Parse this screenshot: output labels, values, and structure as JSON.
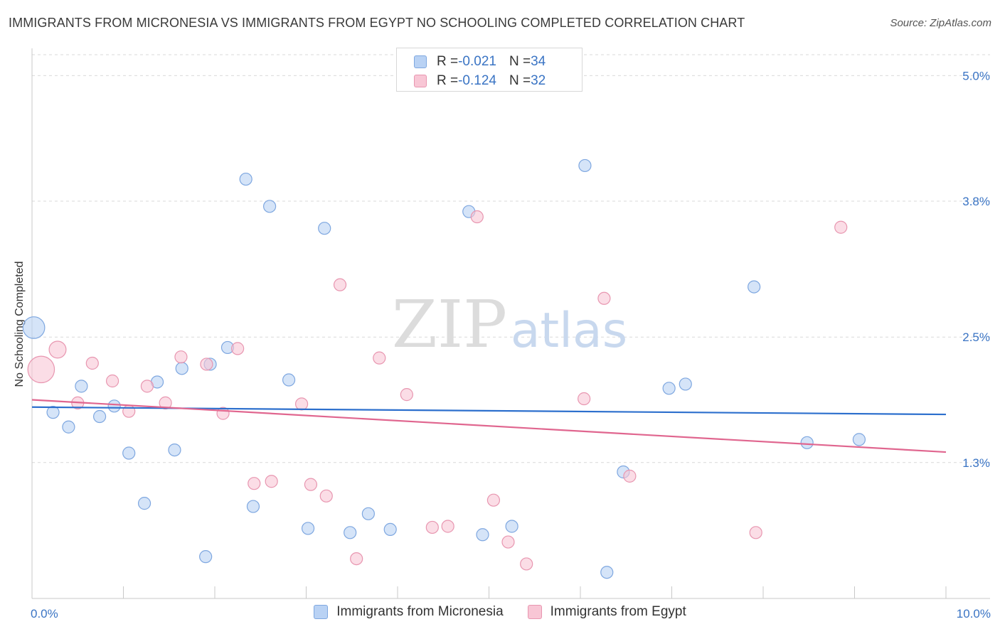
{
  "header": {
    "title": "IMMIGRANTS FROM MICRONESIA VS IMMIGRANTS FROM EGYPT NO SCHOOLING COMPLETED CORRELATION CHART",
    "source": "Source: ZipAtlas.com"
  },
  "watermark": {
    "zip": "ZIP",
    "atlas": "atlas"
  },
  "stats": [
    {
      "r_label": "R = ",
      "r_value": "-0.021",
      "n_label": "N = ",
      "n_value": "34"
    },
    {
      "r_label": "R = ",
      "r_value": "-0.124",
      "n_label": "N = ",
      "n_value": "32"
    }
  ],
  "colors": {
    "micronesia_fill": "#b9d2f4",
    "micronesia_stroke": "#7ea7e0",
    "micronesia_line": "#2c6fcd",
    "egypt_fill": "#f8c6d5",
    "egypt_stroke": "#e896b0",
    "egypt_line": "#e0668f",
    "grid": "#d9d9d9",
    "tick_text": "#3a74c4"
  },
  "chart_data": {
    "type": "scatter",
    "title": "IMMIGRANTS FROM MICRONESIA VS IMMIGRANTS FROM EGYPT NO SCHOOLING COMPLETED CORRELATION CHART",
    "xlabel": "",
    "ylabel": "No Schooling Completed",
    "x_unit": "%",
    "y_unit": "%",
    "xlim": [
      0,
      10
    ],
    "ylim": [
      0,
      5.2
    ],
    "x_tick_labels": [
      "0.0%",
      "10.0%"
    ],
    "y_ticks": [
      1.3,
      2.5,
      3.8,
      5.0
    ],
    "y_tick_labels": [
      "1.3%",
      "2.5%",
      "3.8%",
      "5.0%"
    ],
    "grid": true,
    "legend_position": "bottom-center",
    "series": [
      {
        "name": "Immigrants from Micronesia",
        "color": "#b9d2f4",
        "trend": {
          "x": [
            0,
            10
          ],
          "y": [
            1.83,
            1.76
          ]
        },
        "points": [
          {
            "x": 0.02,
            "y": 2.59,
            "size": 1.8
          },
          {
            "x": 0.23,
            "y": 1.78,
            "size": 1
          },
          {
            "x": 0.4,
            "y": 1.64,
            "size": 1
          },
          {
            "x": 0.54,
            "y": 2.03,
            "size": 1
          },
          {
            "x": 0.74,
            "y": 1.74,
            "size": 1
          },
          {
            "x": 0.9,
            "y": 1.84,
            "size": 1
          },
          {
            "x": 1.06,
            "y": 1.39,
            "size": 1
          },
          {
            "x": 1.23,
            "y": 0.91,
            "size": 1
          },
          {
            "x": 1.37,
            "y": 2.07,
            "size": 1
          },
          {
            "x": 1.56,
            "y": 1.42,
            "size": 1
          },
          {
            "x": 1.64,
            "y": 2.2,
            "size": 1
          },
          {
            "x": 1.9,
            "y": 0.4,
            "size": 1
          },
          {
            "x": 1.95,
            "y": 2.24,
            "size": 1
          },
          {
            "x": 2.14,
            "y": 2.4,
            "size": 1
          },
          {
            "x": 2.34,
            "y": 4.01,
            "size": 1
          },
          {
            "x": 2.42,
            "y": 0.88,
            "size": 1
          },
          {
            "x": 2.6,
            "y": 3.75,
            "size": 1
          },
          {
            "x": 2.81,
            "y": 2.09,
            "size": 1
          },
          {
            "x": 3.02,
            "y": 0.67,
            "size": 1
          },
          {
            "x": 3.2,
            "y": 3.54,
            "size": 1
          },
          {
            "x": 3.48,
            "y": 0.63,
            "size": 1
          },
          {
            "x": 3.68,
            "y": 0.81,
            "size": 1
          },
          {
            "x": 3.92,
            "y": 0.66,
            "size": 1
          },
          {
            "x": 4.78,
            "y": 3.7,
            "size": 1
          },
          {
            "x": 4.93,
            "y": 0.61,
            "size": 1
          },
          {
            "x": 5.25,
            "y": 0.69,
            "size": 1
          },
          {
            "x": 6.05,
            "y": 4.14,
            "size": 1
          },
          {
            "x": 6.29,
            "y": 0.25,
            "size": 1
          },
          {
            "x": 6.47,
            "y": 1.21,
            "size": 1
          },
          {
            "x": 6.97,
            "y": 2.01,
            "size": 1
          },
          {
            "x": 7.15,
            "y": 2.05,
            "size": 1
          },
          {
            "x": 7.9,
            "y": 2.98,
            "size": 1
          },
          {
            "x": 8.48,
            "y": 1.49,
            "size": 1
          },
          {
            "x": 9.05,
            "y": 1.52,
            "size": 1
          }
        ]
      },
      {
        "name": "Immigrants from Egypt",
        "color": "#f8c6d5",
        "trend": {
          "x": [
            0,
            10
          ],
          "y": [
            1.9,
            1.4
          ]
        },
        "points": [
          {
            "x": 0.1,
            "y": 2.19,
            "size": 2.2
          },
          {
            "x": 0.28,
            "y": 2.38,
            "size": 1.4
          },
          {
            "x": 0.5,
            "y": 1.87,
            "size": 1
          },
          {
            "x": 0.66,
            "y": 2.25,
            "size": 1
          },
          {
            "x": 0.88,
            "y": 2.08,
            "size": 1
          },
          {
            "x": 1.06,
            "y": 1.79,
            "size": 1
          },
          {
            "x": 1.26,
            "y": 2.03,
            "size": 1
          },
          {
            "x": 1.46,
            "y": 1.87,
            "size": 1
          },
          {
            "x": 1.63,
            "y": 2.31,
            "size": 1
          },
          {
            "x": 1.91,
            "y": 2.24,
            "size": 1
          },
          {
            "x": 2.09,
            "y": 1.77,
            "size": 1
          },
          {
            "x": 2.25,
            "y": 2.39,
            "size": 1
          },
          {
            "x": 2.43,
            "y": 1.1,
            "size": 1
          },
          {
            "x": 2.62,
            "y": 1.12,
            "size": 1
          },
          {
            "x": 2.95,
            "y": 1.86,
            "size": 1
          },
          {
            "x": 3.05,
            "y": 1.09,
            "size": 1
          },
          {
            "x": 3.22,
            "y": 0.98,
            "size": 1
          },
          {
            "x": 3.37,
            "y": 3.0,
            "size": 1
          },
          {
            "x": 3.55,
            "y": 0.38,
            "size": 1
          },
          {
            "x": 3.8,
            "y": 2.3,
            "size": 1
          },
          {
            "x": 4.1,
            "y": 1.95,
            "size": 1
          },
          {
            "x": 4.38,
            "y": 0.68,
            "size": 1
          },
          {
            "x": 4.55,
            "y": 0.69,
            "size": 1
          },
          {
            "x": 4.87,
            "y": 3.65,
            "size": 1
          },
          {
            "x": 5.05,
            "y": 0.94,
            "size": 1
          },
          {
            "x": 5.21,
            "y": 0.54,
            "size": 1
          },
          {
            "x": 5.41,
            "y": 0.33,
            "size": 1
          },
          {
            "x": 6.04,
            "y": 1.91,
            "size": 1
          },
          {
            "x": 6.26,
            "y": 2.87,
            "size": 1
          },
          {
            "x": 6.54,
            "y": 1.17,
            "size": 1
          },
          {
            "x": 7.92,
            "y": 0.63,
            "size": 1
          },
          {
            "x": 8.85,
            "y": 3.55,
            "size": 1
          }
        ]
      }
    ]
  }
}
